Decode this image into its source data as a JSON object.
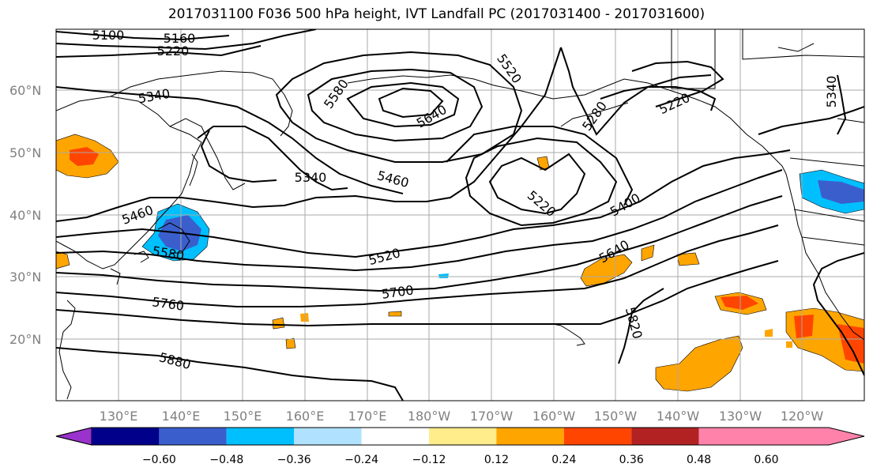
{
  "title": "2017031100 F036 500 hPa height, IVT Landfall PC (2017031400 - 2017031600)",
  "lat_labels": [
    "60°N",
    "50°N",
    "40°N",
    "30°N",
    "20°N"
  ],
  "lon_labels": [
    "130°E",
    "140°E",
    "150°E",
    "160°E",
    "170°E",
    "180°W",
    "170°W",
    "160°W",
    "150°W",
    "140°W",
    "130°W",
    "120°W"
  ],
  "colorbar": {
    "colors": [
      "#9a32cd",
      "#00008b",
      "#3a5fcd",
      "#00bfff",
      "#b0e2ff",
      "#ffffff",
      "#ffec8b",
      "#ffa500",
      "#ff4500",
      "#b22222",
      "#ff82ab"
    ],
    "ticks": [
      "−0.60",
      "−0.48",
      "−0.36",
      "−0.24",
      "−0.12",
      "0.12",
      "0.24",
      "0.36",
      "0.48",
      "0.60"
    ]
  },
  "contour_labels": [
    "5100",
    "5160",
    "5220",
    "5340",
    "5580",
    "5640",
    "5520",
    "5280",
    "5220",
    "5340",
    "5460",
    "5460",
    "5220",
    "5400",
    "5640",
    "5520",
    "5580",
    "5700",
    "5760",
    "5880",
    "5820",
    "5340"
  ]
}
